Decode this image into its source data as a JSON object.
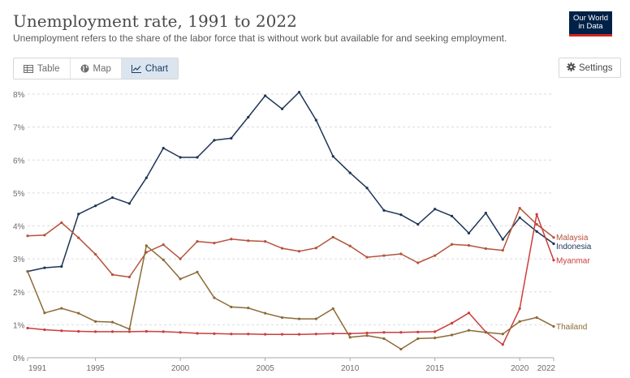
{
  "header": {
    "title": "Unemployment rate, 1991 to 2022",
    "subtitle": "Unemployment refers to the share of the labor force that is without work but available for and seeking employment.",
    "logo_line1": "Our World",
    "logo_line2": "in Data"
  },
  "tabs": [
    {
      "label": "Table",
      "icon": "table-icon"
    },
    {
      "label": "Map",
      "icon": "globe-icon"
    },
    {
      "label": "Chart",
      "icon": "line-chart-icon",
      "active": true
    }
  ],
  "settings": {
    "label": "Settings",
    "icon": "gear-icon"
  },
  "chart_data": {
    "type": "line",
    "title": "Unemployment rate, 1991 to 2022",
    "xlabel": "",
    "ylabel": "",
    "xlim": [
      1991,
      2022
    ],
    "ylim": [
      0,
      8
    ],
    "y_unit": "%",
    "grid": "horizontal dashed",
    "x_ticks": [
      "1991",
      "1995",
      "2000",
      "2005",
      "2010",
      "2015",
      "2020",
      "2022"
    ],
    "y_ticks": [
      "0%",
      "1%",
      "2%",
      "3%",
      "4%",
      "5%",
      "6%",
      "7%",
      "8%"
    ],
    "x": [
      1991,
      1992,
      1993,
      1994,
      1995,
      1996,
      1997,
      1998,
      1999,
      2000,
      2001,
      2002,
      2003,
      2004,
      2005,
      2006,
      2007,
      2008,
      2009,
      2010,
      2011,
      2012,
      2013,
      2014,
      2015,
      2016,
      2017,
      2018,
      2019,
      2020,
      2021,
      2022
    ],
    "legend": "labels at line ends (right)",
    "series": [
      {
        "name": "Indonesia",
        "color": "#1d3557",
        "values": [
          2.62,
          2.73,
          2.77,
          4.36,
          4.61,
          4.86,
          4.68,
          5.46,
          6.36,
          6.08,
          6.08,
          6.6,
          6.66,
          7.3,
          7.95,
          7.55,
          8.06,
          7.21,
          6.11,
          5.61,
          5.15,
          4.47,
          4.34,
          4.05,
          4.51,
          4.3,
          3.78,
          4.39,
          3.59,
          4.25,
          3.83,
          3.46
        ]
      },
      {
        "name": "Malaysia",
        "color": "#b5533c",
        "values": [
          3.7,
          3.72,
          4.1,
          3.64,
          3.14,
          2.52,
          2.45,
          3.2,
          3.43,
          3.0,
          3.53,
          3.48,
          3.6,
          3.55,
          3.53,
          3.32,
          3.23,
          3.33,
          3.66,
          3.39,
          3.05,
          3.1,
          3.15,
          2.88,
          3.1,
          3.44,
          3.41,
          3.31,
          3.26,
          4.54,
          4.05,
          3.65
        ]
      },
      {
        "name": "Myanmar",
        "color": "#cc3d3d",
        "values": [
          0.9,
          0.85,
          0.82,
          0.8,
          0.79,
          0.79,
          0.79,
          0.8,
          0.79,
          0.77,
          0.74,
          0.73,
          0.72,
          0.72,
          0.71,
          0.71,
          0.71,
          0.72,
          0.73,
          0.73,
          0.75,
          0.77,
          0.77,
          0.78,
          0.79,
          1.05,
          1.36,
          0.78,
          0.4,
          1.49,
          4.35,
          2.96
        ]
      },
      {
        "name": "Thailand",
        "color": "#8c6a36",
        "values": [
          2.62,
          1.36,
          1.5,
          1.35,
          1.1,
          1.08,
          0.87,
          3.4,
          2.97,
          2.39,
          2.6,
          1.82,
          1.54,
          1.51,
          1.35,
          1.22,
          1.18,
          1.18,
          1.49,
          0.62,
          0.67,
          0.58,
          0.26,
          0.58,
          0.6,
          0.69,
          0.83,
          0.77,
          0.72,
          1.1,
          1.22,
          0.95
        ]
      }
    ]
  }
}
